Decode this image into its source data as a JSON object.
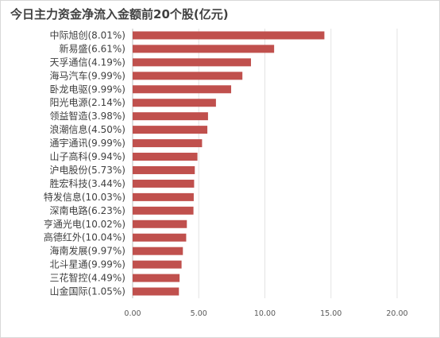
{
  "chart_data": {
    "type": "bar",
    "orientation": "horizontal",
    "title": "今日主力资金净流入金额前20个股(亿元)",
    "categories": [
      "中际旭创(8.01%)",
      "新易盛(6.61%)",
      "天孚通信(4.19%)",
      "海马汽车(9.99%)",
      "卧龙电驱(9.99%)",
      "阳光电源(2.14%)",
      "领益智造(3.98%)",
      "浪潮信息(4.50%)",
      "通宇通讯(9.99%)",
      "山子高科(9.94%)",
      "沪电股份(5.73%)",
      "胜宏科技(3.44%)",
      "特发信息(10.03%)",
      "深南电路(6.23%)",
      "亨通光电(10.02%)",
      "高德红外(10.04%)",
      "海南发展(9.97%)",
      "北斗星通(9.99%)",
      "三花智控(4.49%)",
      "山金国际(1.05%)"
    ],
    "values": [
      14.5,
      10.7,
      8.95,
      8.3,
      7.45,
      6.3,
      5.7,
      5.65,
      5.25,
      4.9,
      4.7,
      4.65,
      4.62,
      4.6,
      4.1,
      4.05,
      3.8,
      3.7,
      3.55,
      3.5
    ],
    "xlim": [
      0,
      20
    ],
    "ticks": [
      "0.00",
      "5.00",
      "10.00",
      "15.00",
      "20.00"
    ],
    "tick_values": [
      0,
      5,
      10,
      15,
      20
    ],
    "grid": true,
    "bar_color": "#c0504d"
  }
}
